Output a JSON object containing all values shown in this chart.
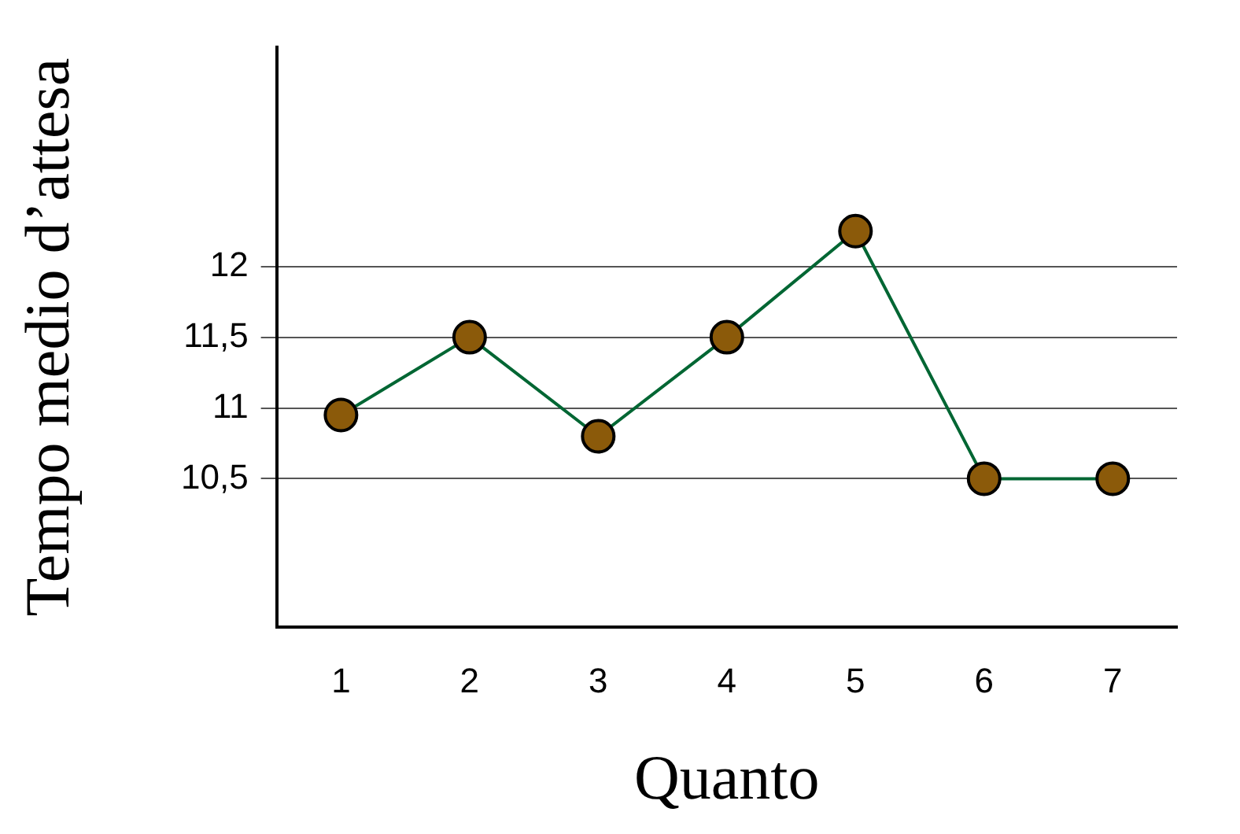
{
  "chart_data": {
    "type": "line",
    "xlabel": "Quanto",
    "ylabel": "Tempo medio d’attesa",
    "categories": [
      "1",
      "2",
      "3",
      "4",
      "5",
      "6",
      "7"
    ],
    "series": [
      {
        "color": "#006633",
        "values": [
          10.95,
          11.5,
          10.8,
          11.5,
          12.25,
          10.5,
          10.5
        ]
      }
    ],
    "ylim": [
      9.45,
      13.55
    ],
    "yticks": [
      {
        "value": 10.5,
        "label": "10,5"
      },
      {
        "value": 11,
        "label": "11"
      },
      {
        "value": 11.5,
        "label": "11,5"
      },
      {
        "value": 12,
        "label": "12"
      }
    ],
    "grid": "y",
    "marker": "circle",
    "line_style": "solid",
    "legend": false
  }
}
